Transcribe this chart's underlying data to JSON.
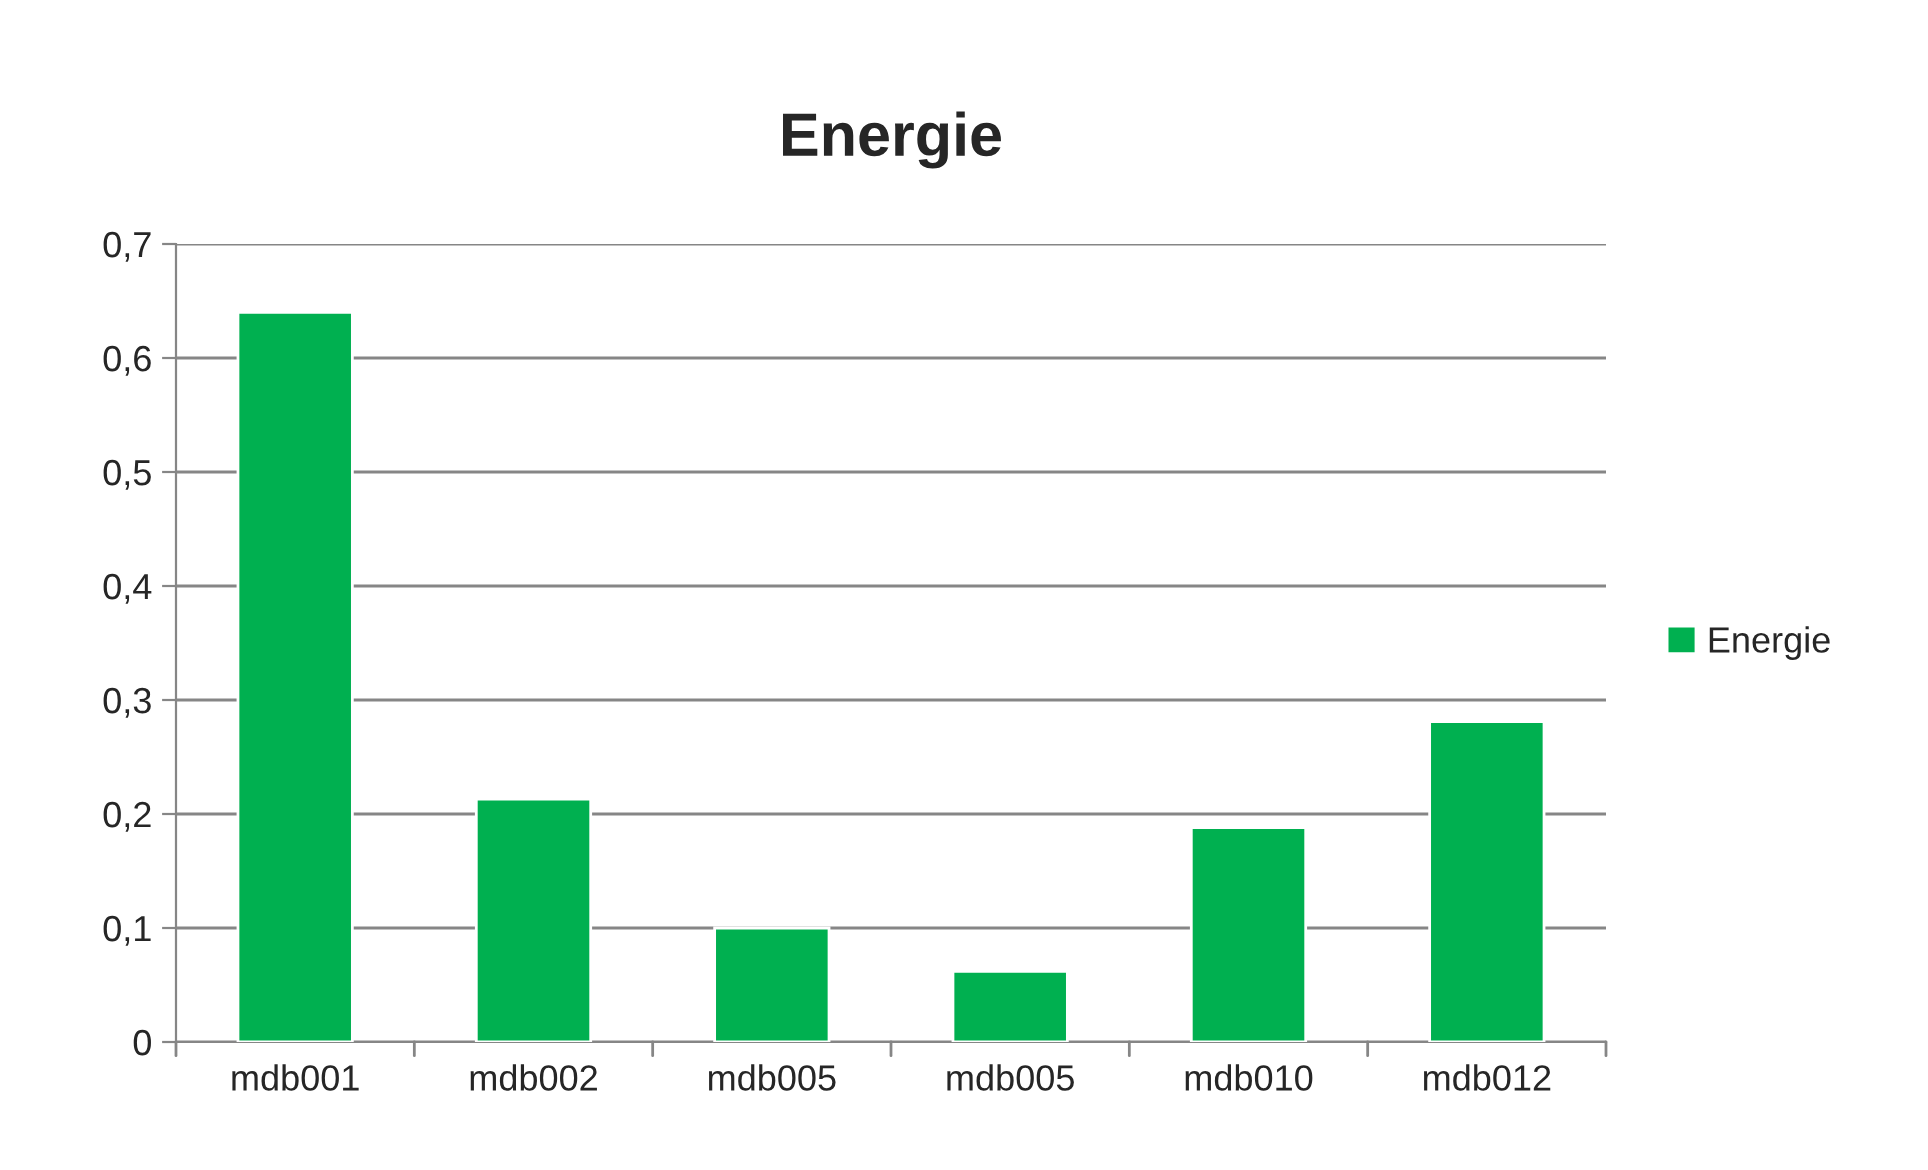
{
  "chart_data": {
    "type": "bar",
    "title": "Energie",
    "categories": [
      "mdb001",
      "mdb002",
      "mdb005",
      "mdb005",
      "mdb010",
      "mdb012"
    ],
    "series": [
      {
        "name": "Energie",
        "color": "#00b050",
        "values": [
          0.64,
          0.213,
          0.1,
          0.062,
          0.188,
          0.281
        ]
      }
    ],
    "ylim": [
      0,
      0.7
    ],
    "yticks": [
      0,
      {
        "value": 0.1,
        "label": "0,1"
      },
      {
        "value": 0.2,
        "label": "0,2"
      },
      {
        "value": 0.3,
        "label": "0,3"
      },
      {
        "value": 0.4,
        "label": "0,4"
      },
      {
        "value": 0.5,
        "label": "0,5"
      },
      {
        "value": 0.6,
        "label": "0,6"
      },
      {
        "value": 0.7,
        "label": "0,7"
      }
    ],
    "grid": "y",
    "legend": "right"
  }
}
